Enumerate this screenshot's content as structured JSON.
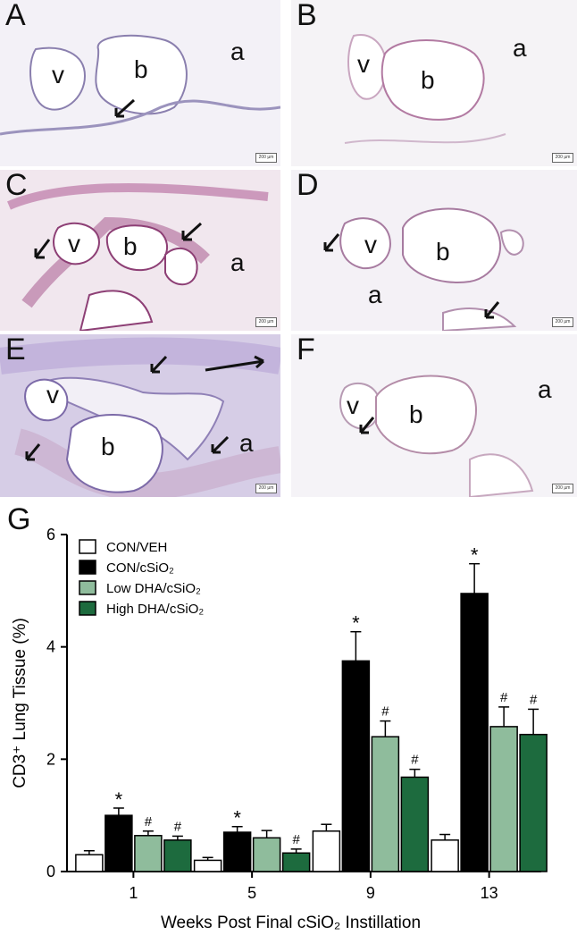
{
  "panels": [
    {
      "letter": "A",
      "labels": {
        "v": "v",
        "b": "b",
        "a": "a"
      },
      "scale": "200 µm"
    },
    {
      "letter": "B",
      "labels": {
        "v": "v",
        "b": "b",
        "a": "a"
      },
      "scale": "200 µm"
    },
    {
      "letter": "C",
      "labels": {
        "v": "v",
        "b": "b",
        "a": "a"
      },
      "scale": "200 µm"
    },
    {
      "letter": "D",
      "labels": {
        "v": "v",
        "b": "b",
        "a": "a"
      },
      "scale": "200 µm"
    },
    {
      "letter": "E",
      "labels": {
        "v": "v",
        "b": "b",
        "a": "a"
      },
      "scale": "200 µm"
    },
    {
      "letter": "F",
      "labels": {
        "v": "v",
        "b": "b",
        "a": "a"
      },
      "scale": "200 µm"
    }
  ],
  "chart_letter": "G",
  "chart_data": {
    "type": "bar",
    "categories": [
      "1",
      "5",
      "9",
      "13"
    ],
    "xlabel": "Weeks Post Final cSiO₂ Instillation",
    "ylabel": "CD3⁺ Lung Tissue (%)",
    "ylim": [
      0,
      6
    ],
    "yticks": [
      "0",
      "2",
      "4",
      "6"
    ],
    "legend_position": "top-left",
    "series": [
      {
        "name": "CON/VEH",
        "color": "#ffffff",
        "values": [
          0.3,
          0.2,
          0.72,
          0.56
        ],
        "errors": [
          0.07,
          0.05,
          0.12,
          0.1
        ],
        "marks": [
          "",
          "",
          "",
          ""
        ]
      },
      {
        "name": "CON/cSiO₂",
        "color": "#000000",
        "values": [
          1.0,
          0.7,
          3.75,
          4.95
        ],
        "errors": [
          0.13,
          0.1,
          0.52,
          0.53
        ],
        "marks": [
          "*",
          "*",
          "*",
          "*"
        ]
      },
      {
        "name": "Low DHA/cSiO₂",
        "color": "#8fbc9c",
        "values": [
          0.64,
          0.6,
          2.4,
          2.58
        ],
        "errors": [
          0.08,
          0.13,
          0.28,
          0.35
        ],
        "marks": [
          "#",
          "",
          "#",
          "#"
        ]
      },
      {
        "name": "High DHA/cSiO₂",
        "color": "#1d6b3e",
        "values": [
          0.56,
          0.33,
          1.68,
          2.44
        ],
        "errors": [
          0.07,
          0.07,
          0.14,
          0.45
        ],
        "marks": [
          "#",
          "#",
          "#",
          "#"
        ]
      }
    ]
  }
}
